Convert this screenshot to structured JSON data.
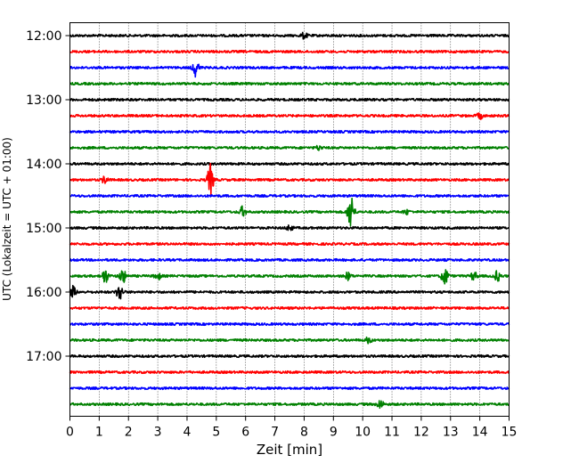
{
  "chart_data": {
    "type": "line",
    "title": "",
    "xlabel": "Zeit  [min]",
    "ylabel": "UTC (Lokalzeit = UTC + 01:00)",
    "xlim": [
      0,
      15
    ],
    "x_ticks": [
      "0",
      "1",
      "2",
      "3",
      "4",
      "5",
      "6",
      "7",
      "8",
      "9",
      "10",
      "11",
      "12",
      "13",
      "14",
      "15"
    ],
    "y_ticks": [
      "12:00",
      "13:00",
      "14:00",
      "15:00",
      "16:00",
      "17:00"
    ],
    "grid": "vertical dotted at each minute",
    "row_interval_minutes": 15,
    "series_colors": [
      "#000000",
      "#ff0000",
      "#0000ff",
      "#008000"
    ],
    "rows": [
      {
        "start": "12:00",
        "color": "#000000",
        "events": [
          {
            "x": 8.0,
            "amp": 0.4
          }
        ]
      },
      {
        "start": "12:15",
        "color": "#ff0000",
        "events": []
      },
      {
        "start": "12:30",
        "color": "#0000ff",
        "events": [
          {
            "x": 4.3,
            "amp": 1.2
          }
        ]
      },
      {
        "start": "12:45",
        "color": "#008000",
        "events": []
      },
      {
        "start": "13:00",
        "color": "#000000",
        "events": []
      },
      {
        "start": "13:15",
        "color": "#ff0000",
        "events": [
          {
            "x": 14.0,
            "amp": 0.4
          }
        ]
      },
      {
        "start": "13:30",
        "color": "#0000ff",
        "events": []
      },
      {
        "start": "13:45",
        "color": "#008000",
        "events": [
          {
            "x": 8.5,
            "amp": 0.3
          }
        ]
      },
      {
        "start": "14:00",
        "color": "#000000",
        "events": []
      },
      {
        "start": "14:15",
        "color": "#ff0000",
        "events": [
          {
            "x": 1.2,
            "amp": 0.5
          },
          {
            "x": 4.8,
            "amp": 2.2
          }
        ]
      },
      {
        "start": "14:30",
        "color": "#0000ff",
        "events": []
      },
      {
        "start": "14:45",
        "color": "#008000",
        "events": [
          {
            "x": 5.9,
            "amp": 0.7
          },
          {
            "x": 9.6,
            "amp": 2.6
          },
          {
            "x": 11.5,
            "amp": 0.3
          }
        ]
      },
      {
        "start": "15:00",
        "color": "#000000",
        "events": [
          {
            "x": 7.5,
            "amp": 0.4
          }
        ]
      },
      {
        "start": "15:15",
        "color": "#ff0000",
        "events": []
      },
      {
        "start": "15:30",
        "color": "#0000ff",
        "events": []
      },
      {
        "start": "15:45",
        "color": "#008000",
        "events": [
          {
            "x": 1.2,
            "amp": 1.0
          },
          {
            "x": 1.8,
            "amp": 1.0
          },
          {
            "x": 3.0,
            "amp": 0.5
          },
          {
            "x": 9.5,
            "amp": 0.5
          },
          {
            "x": 12.8,
            "amp": 1.3
          },
          {
            "x": 13.8,
            "amp": 0.6
          },
          {
            "x": 14.6,
            "amp": 0.7
          }
        ]
      },
      {
        "start": "16:00",
        "color": "#000000",
        "events": [
          {
            "x": 0.1,
            "amp": 0.8
          },
          {
            "x": 1.7,
            "amp": 1.1
          }
        ]
      },
      {
        "start": "16:15",
        "color": "#ff0000",
        "events": []
      },
      {
        "start": "16:30",
        "color": "#0000ff",
        "events": []
      },
      {
        "start": "16:45",
        "color": "#008000",
        "events": [
          {
            "x": 10.2,
            "amp": 0.4
          }
        ]
      },
      {
        "start": "17:00",
        "color": "#000000",
        "events": []
      },
      {
        "start": "17:15",
        "color": "#ff0000",
        "events": []
      },
      {
        "start": "17:30",
        "color": "#0000ff",
        "events": []
      },
      {
        "start": "17:45",
        "color": "#008000",
        "events": [
          {
            "x": 10.6,
            "amp": 0.6
          }
        ]
      }
    ]
  }
}
